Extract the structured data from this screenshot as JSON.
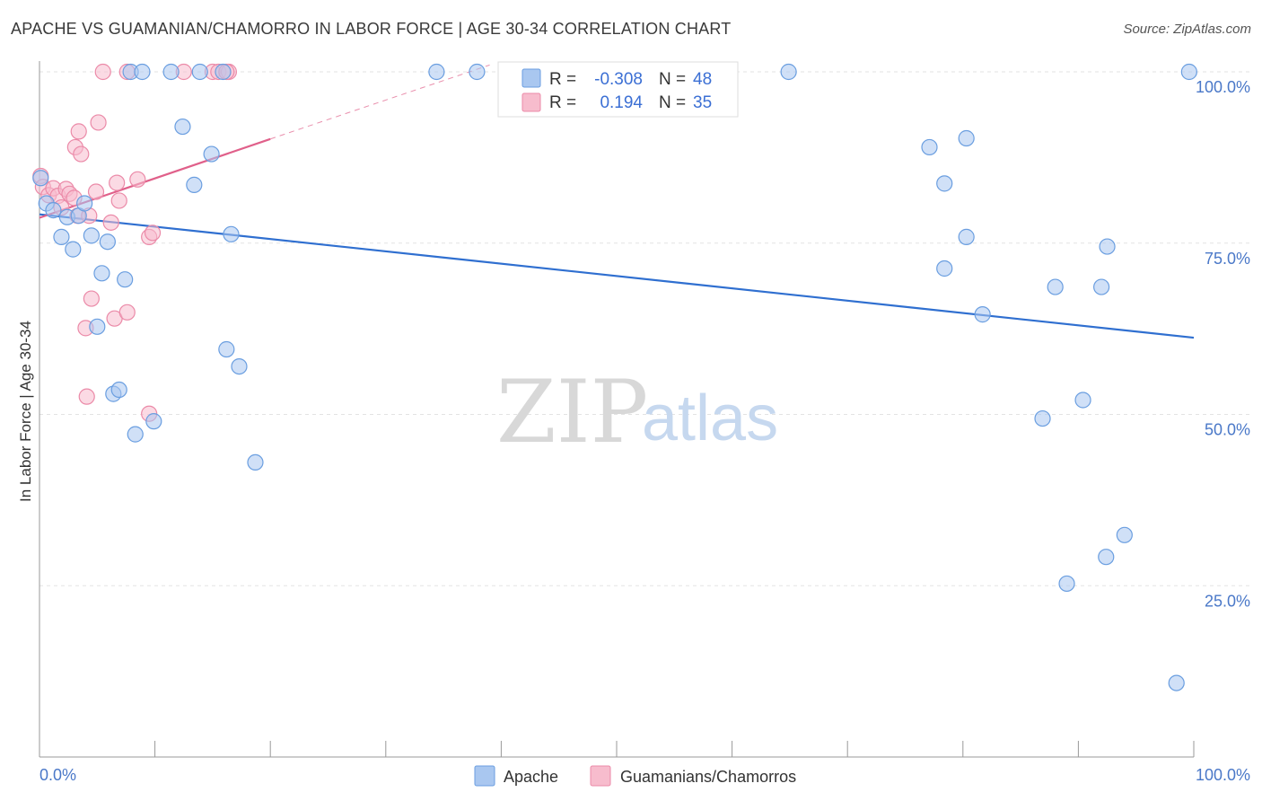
{
  "header": {
    "title": "APACHE VS GUAMANIAN/CHAMORRO IN LABOR FORCE | AGE 30-34 CORRELATION CHART",
    "source": "Source: ZipAtlas.com"
  },
  "watermark": {
    "zip": "ZIP",
    "atlas": "atlas"
  },
  "legend": {
    "rows": [
      {
        "r_label": "R =",
        "r_value": "-0.308",
        "n_label": "N =",
        "n_value": "48"
      },
      {
        "r_label": "R =",
        "r_value": "0.194",
        "n_label": "N =",
        "n_value": "35"
      }
    ]
  },
  "bottom_legend": {
    "series1": "Apache",
    "series2": "Guamanians/Chamorros"
  },
  "colors": {
    "apache_fill": "#a9c7f0",
    "apache_stroke": "#6a9ee0",
    "apache_line": "#2f6fd0",
    "guam_fill": "#f7bccd",
    "guam_stroke": "#eb8aa8",
    "guam_line": "#e0608a",
    "grid": "#e3e3e3",
    "tick_text": "#4a78c8"
  },
  "chart_data": {
    "type": "scatter",
    "title": "APACHE VS GUAMANIAN/CHAMORRO IN LABOR FORCE | AGE 30-34 CORRELATION CHART",
    "xlabel": "",
    "ylabel": "In Labor Force | Age 30-34",
    "xlim": [
      0,
      100
    ],
    "ylim": [
      0,
      105
    ],
    "x_tick_labels": [
      "0.0%",
      "100.0%"
    ],
    "y_ticks": [
      25,
      50,
      75,
      100
    ],
    "y_tick_labels": [
      "25.0%",
      "50.0%",
      "75.0%",
      "100.0%"
    ],
    "grid": true,
    "legend_position": "top-center",
    "series": [
      {
        "name": "Apache",
        "r": -0.308,
        "n": 48,
        "trend": {
          "x": [
            0,
            100
          ],
          "y": [
            79.2,
            61.2
          ]
        },
        "points": [
          [
            0.1,
            84.5
          ],
          [
            0.6,
            80.8
          ],
          [
            1.2,
            79.8
          ],
          [
            1.9,
            75.9
          ],
          [
            2.4,
            78.8
          ],
          [
            2.9,
            74.1
          ],
          [
            3.4,
            79.0
          ],
          [
            3.9,
            80.8
          ],
          [
            4.5,
            76.1
          ],
          [
            5.0,
            62.8
          ],
          [
            5.4,
            70.6
          ],
          [
            5.9,
            75.2
          ],
          [
            6.4,
            53.0
          ],
          [
            6.9,
            53.6
          ],
          [
            7.4,
            69.7
          ],
          [
            7.9,
            100.0
          ],
          [
            8.3,
            47.1
          ],
          [
            8.9,
            100.0
          ],
          [
            9.9,
            49.0
          ],
          [
            11.4,
            100.0
          ],
          [
            12.4,
            92.0
          ],
          [
            13.4,
            83.5
          ],
          [
            13.9,
            100.0
          ],
          [
            14.9,
            88.0
          ],
          [
            15.9,
            100.0
          ],
          [
            16.2,
            59.5
          ],
          [
            16.6,
            76.3
          ],
          [
            17.3,
            57.0
          ],
          [
            18.7,
            43.0
          ],
          [
            34.4,
            100.0
          ],
          [
            37.9,
            100.0
          ],
          [
            64.9,
            100.0
          ],
          [
            77.1,
            89.0
          ],
          [
            80.3,
            90.3
          ],
          [
            78.4,
            83.7
          ],
          [
            80.3,
            75.9
          ],
          [
            78.4,
            71.3
          ],
          [
            81.7,
            64.6
          ],
          [
            86.9,
            49.4
          ],
          [
            88.0,
            68.6
          ],
          [
            90.4,
            52.1
          ],
          [
            92.0,
            68.6
          ],
          [
            92.5,
            74.5
          ],
          [
            92.4,
            29.2
          ],
          [
            94.0,
            32.4
          ],
          [
            89.0,
            25.3
          ],
          [
            98.5,
            10.8
          ],
          [
            99.6,
            100.0
          ]
        ]
      },
      {
        "name": "Guamanians/Chamorros",
        "r": 0.194,
        "n": 35,
        "trend": {
          "x": [
            0,
            20
          ],
          "y": [
            78.7,
            90.2
          ]
        },
        "trend_dashed": {
          "x": [
            20,
            39
          ],
          "y": [
            90.2,
            101.0
          ]
        },
        "points": [
          [
            0.1,
            84.8
          ],
          [
            0.3,
            83.2
          ],
          [
            0.8,
            82.0
          ],
          [
            1.2,
            83.0
          ],
          [
            1.6,
            81.9
          ],
          [
            1.9,
            80.2
          ],
          [
            2.3,
            82.9
          ],
          [
            2.6,
            82.2
          ],
          [
            3.0,
            81.6
          ],
          [
            3.3,
            79.0
          ],
          [
            3.1,
            89.0
          ],
          [
            3.4,
            91.3
          ],
          [
            3.6,
            88.0
          ],
          [
            4.0,
            62.6
          ],
          [
            4.1,
            52.6
          ],
          [
            4.3,
            79.0
          ],
          [
            4.5,
            66.9
          ],
          [
            4.9,
            82.5
          ],
          [
            5.1,
            92.6
          ],
          [
            5.5,
            100.0
          ],
          [
            6.2,
            78.0
          ],
          [
            6.5,
            64.0
          ],
          [
            6.7,
            83.8
          ],
          [
            6.9,
            81.2
          ],
          [
            7.6,
            64.9
          ],
          [
            7.6,
            100.0
          ],
          [
            8.5,
            84.3
          ],
          [
            9.5,
            50.1
          ],
          [
            9.5,
            75.9
          ],
          [
            9.8,
            76.5
          ],
          [
            12.5,
            100.0
          ],
          [
            15.0,
            100.0
          ],
          [
            15.5,
            100.0
          ],
          [
            16.4,
            100.0
          ],
          [
            16.2,
            100.0
          ]
        ]
      }
    ]
  }
}
